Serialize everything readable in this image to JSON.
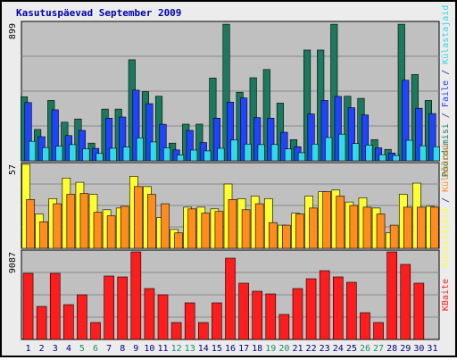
{
  "chart_data": {
    "type": "bar",
    "title": "Kasutuspäevad September 2009",
    "categories": [
      "1",
      "2",
      "3",
      "4",
      "5",
      "6",
      "7",
      "8",
      "9",
      "10",
      "11",
      "12",
      "13",
      "14",
      "15",
      "16",
      "17",
      "18",
      "19",
      "20",
      "21",
      "22",
      "23",
      "24",
      "25",
      "26",
      "27",
      "28",
      "29",
      "30",
      "31"
    ],
    "weekend_days": [
      "5",
      "6",
      "12",
      "13",
      "19",
      "20",
      "26",
      "27"
    ],
    "panels": [
      {
        "id": "top",
        "ytick_label": "899",
        "ymax": 1000,
        "series": [
          {
            "name": "Pöördumisi",
            "color": "#1b7a5e",
            "values": [
              459,
              225,
              433,
              277,
              300,
              127,
              371,
              371,
              725,
              496,
              463,
              127,
              263,
              263,
              594,
              1019,
              492,
              596,
              655,
              414,
              152,
              795,
              795,
              1118,
              463,
              448,
              152,
              82,
              1019,
              619,
              433
            ]
          },
          {
            "name": "Faile",
            "color": "#1f44ff",
            "values": [
              418,
              173,
              366,
              181,
              218,
              89,
              306,
              314,
              507,
              410,
              262,
              78,
              218,
              131,
              306,
              421,
              451,
              310,
              306,
              205,
              101,
              336,
              433,
              462,
              381,
              329,
              93,
              56,
              578,
              377,
              339
            ]
          },
          {
            "name": "Külastajaid",
            "color": "#34d8ec",
            "values": [
              140,
              95,
              105,
              116,
              86,
              53,
              90,
              99,
              164,
              135,
              93,
              42,
              77,
              71,
              90,
              149,
              120,
              116,
              117,
              85,
              58,
              120,
              167,
              191,
              124,
              113,
              44,
              38,
              147,
              108,
              101
            ]
          }
        ]
      },
      {
        "id": "middle",
        "ytick_label": "57",
        "ymax": 100,
        "series": [
          {
            "name": "Külastajaid",
            "color": "#ffff30",
            "values": [
              102,
              40,
              58,
              82,
              77,
              63,
              45,
              47,
              84,
              72,
              36,
              22,
              48,
              48,
              46,
              75,
              58,
              61,
              58,
              27,
              41,
              61,
              66,
              68,
              54,
              59,
              47,
              18,
              63,
              76,
              49
            ]
          },
          {
            "name": "Külastusi",
            "color": "#ff8c1c",
            "values": [
              57,
              31,
              52,
              63,
              64,
              42,
              38,
              49,
              72,
              63,
              52,
              18,
              46,
              41,
              43,
              57,
              45,
              52,
              30,
              27,
              40,
              47,
              66,
              61,
              50,
              48,
              40,
              27,
              48,
              48,
              48
            ]
          }
        ]
      },
      {
        "id": "bottom",
        "ytick_label": "9087",
        "ymax": 10000,
        "series": [
          {
            "name": "KBaite",
            "color": "#ff1c1c",
            "values": [
              7400,
              3700,
              7400,
              3900,
              5000,
              1900,
              7100,
              7000,
              10500,
              5700,
              5000,
              1900,
              4100,
              1900,
              4100,
              9100,
              6300,
              5400,
              5100,
              2800,
              5700,
              6800,
              7700,
              7000,
              6400,
              3000,
              1900,
              11300,
              8400,
              6300,
              0
            ]
          }
        ]
      }
    ],
    "right_legend": {
      "top": [
        {
          "text": "Pöördumisi",
          "color": "#1b7a5e"
        },
        {
          "text": " / ",
          "color": "#2a2a8a"
        },
        {
          "text": "Faile",
          "color": "#1f44ff"
        },
        {
          "text": " / ",
          "color": "#2a2a8a"
        },
        {
          "text": "Külastajaid",
          "color": "#34d8ec"
        }
      ],
      "middle": [
        {
          "text": "Külastajaid",
          "color": "#ffff30"
        },
        {
          "text": " / ",
          "color": "#2a2a8a"
        },
        {
          "text": "Külastusi",
          "color": "#ff8c1c"
        }
      ],
      "bottom": [
        {
          "text": "KBaite",
          "color": "#ff1c1c"
        }
      ]
    },
    "colors": {
      "background": "#ececec",
      "panel": "#c0c0c0",
      "title": "#0000aa",
      "weekday_label": "#000080",
      "weekend_label": "#1f8a6c",
      "gridline": "#8a8a8a"
    }
  }
}
